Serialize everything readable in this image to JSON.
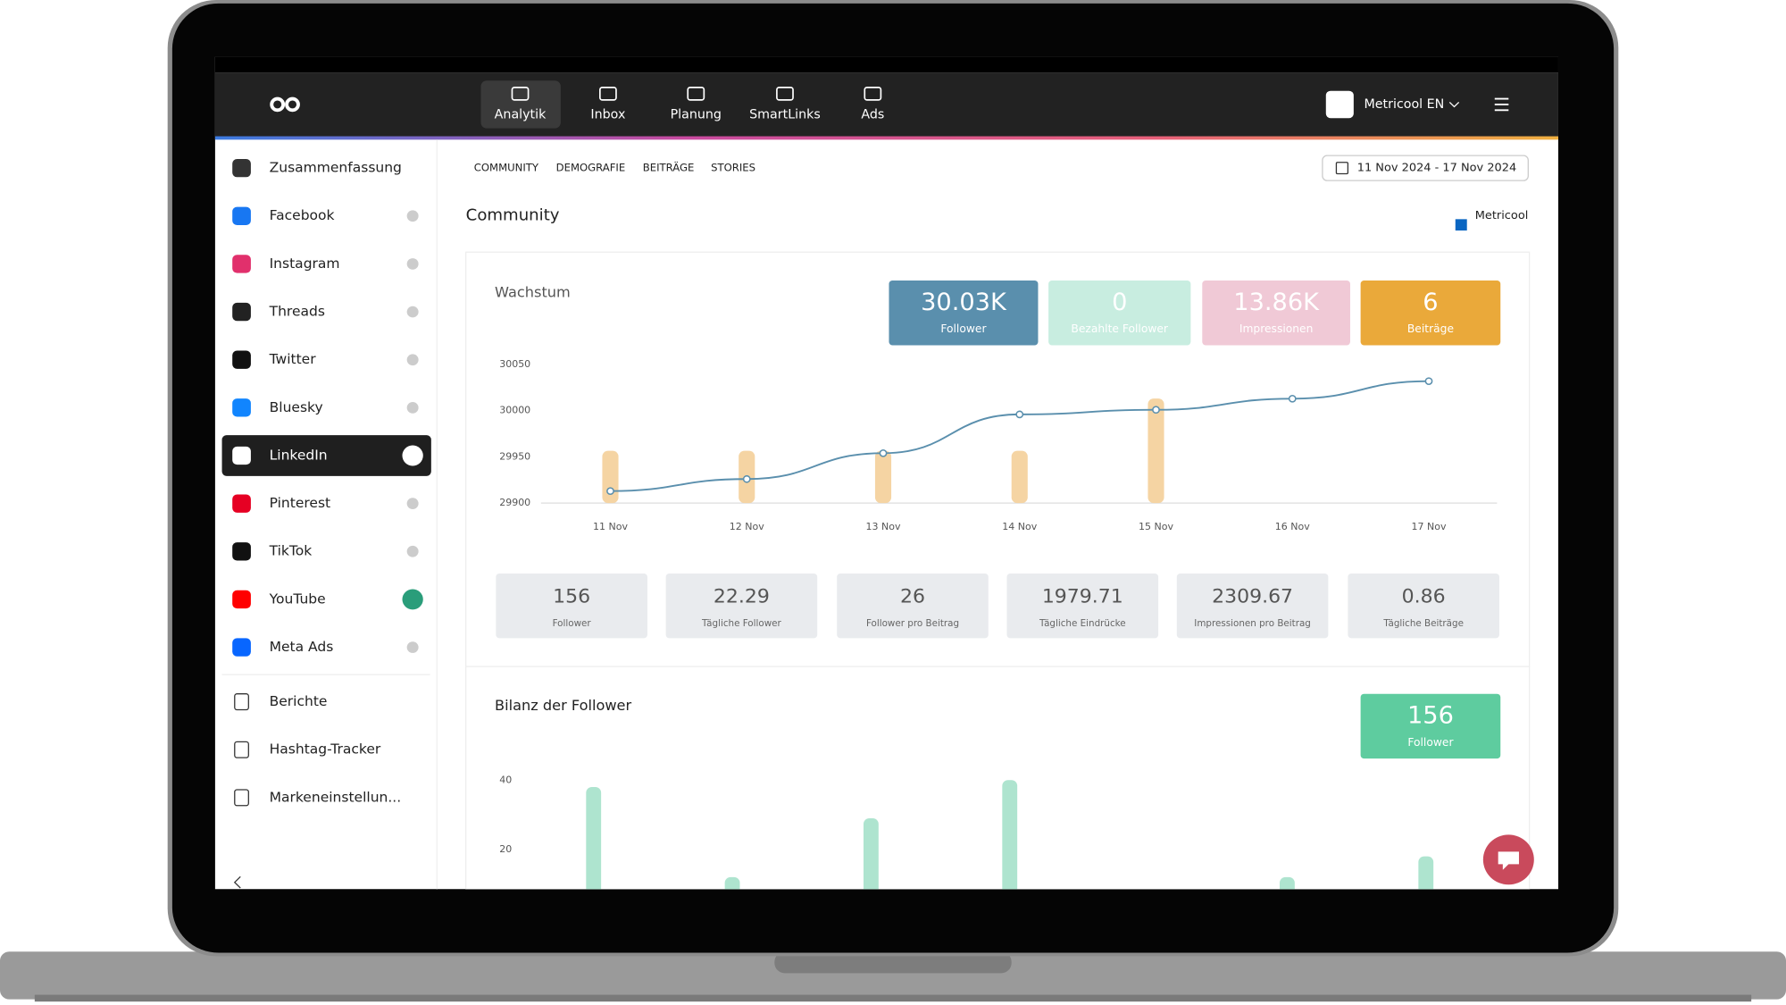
{
  "nav": {
    "items": [
      "Analytik",
      "Inbox",
      "Planung",
      "SmartLinks",
      "Ads"
    ],
    "account": "Metricool EN"
  },
  "sidebar": {
    "networks": [
      "Zusammenfassung",
      "Facebook",
      "Instagram",
      "Threads",
      "Twitter",
      "Bluesky",
      "LinkedIn",
      "Pinterest",
      "TikTok",
      "YouTube",
      "Meta Ads"
    ],
    "tools": [
      "Berichte",
      "Hashtag-Tracker",
      "Markeneinstellun..."
    ]
  },
  "tabs": [
    "COMMUNITY",
    "DEMOGRAFIE",
    "BEITRÄGE",
    "STORIES"
  ],
  "date_range": "11 Nov 2024 - 17 Nov 2024",
  "section": {
    "title": "Community",
    "profile": "Metricool"
  },
  "growth": {
    "title": "Wachstum",
    "kpis": [
      {
        "value": "30.03K",
        "label": "Follower",
        "color": "#5a8fad"
      },
      {
        "value": "0",
        "label": "Bezahlte Follower",
        "color": "#c8ede0"
      },
      {
        "value": "13.86K",
        "label": "Impressionen",
        "color": "#f0c9d6"
      },
      {
        "value": "6",
        "label": "Beiträge",
        "color": "#eaa93a"
      }
    ],
    "chart": {
      "type": "bar-line",
      "categories": [
        "11 Nov",
        "12 Nov",
        "13 Nov",
        "14 Nov",
        "15 Nov",
        "16 Nov",
        "17 Nov"
      ],
      "ylim": [
        29900,
        30050
      ],
      "yticks": [
        29900,
        29950,
        30000,
        30050
      ],
      "y2lim": [
        0,
        2.65
      ],
      "line": {
        "color": "#5a8fad",
        "values": [
          29913,
          29926,
          29954,
          29996,
          30001,
          30013,
          30032
        ]
      },
      "bars": {
        "color": "#f5d4a3",
        "axis": "y2",
        "values": [
          1,
          1,
          1,
          1,
          2,
          0,
          0
        ]
      }
    }
  },
  "stats": [
    {
      "value": 156,
      "label": "Follower"
    },
    {
      "value": 22.29,
      "label": "Tägliche Follower"
    },
    {
      "value": 26,
      "label": "Follower pro Beitrag"
    },
    {
      "value": 1979.71,
      "label": "Tägliche Eindrücke"
    },
    {
      "value": 2309.67,
      "label": "Impressionen pro Beitrag"
    },
    {
      "value": 0.86,
      "label": "Tägliche Beiträge"
    }
  ],
  "balance": {
    "title": "Bilanz der Follower",
    "kpi": {
      "value": 156,
      "label": "Follower",
      "color": "#5ecc9f"
    },
    "chart": {
      "type": "bar",
      "color": "#aee4cf",
      "ylim": [
        0,
        40
      ],
      "yticks": [
        20,
        40
      ],
      "values": [
        38,
        12,
        29,
        40,
        0,
        12,
        18
      ]
    }
  }
}
